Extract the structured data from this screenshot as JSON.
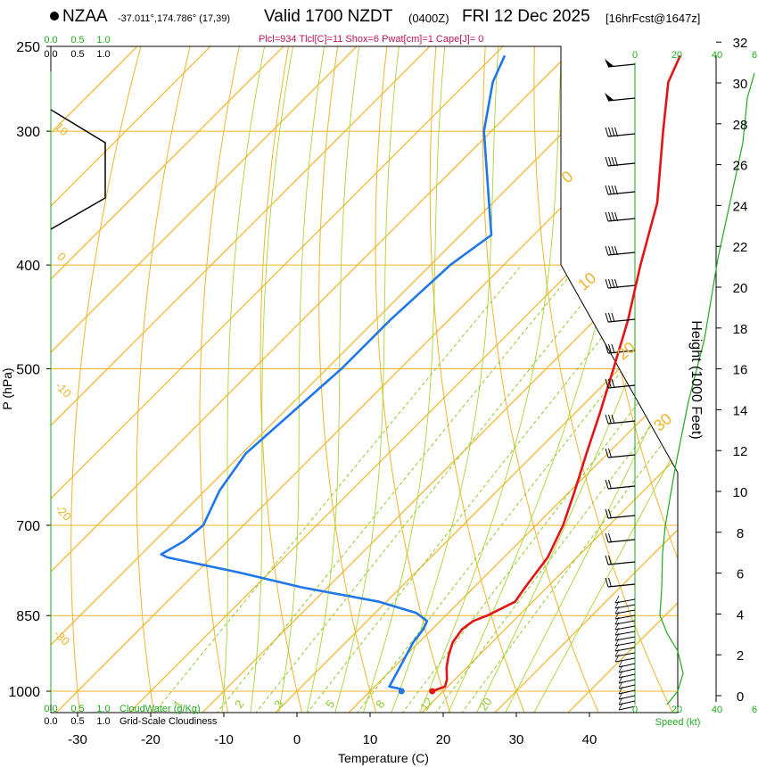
{
  "header": {
    "station": "NZAA",
    "coords": "-37.011°,174.786° (17,39)",
    "valid": "Valid 1700 NZDT",
    "utc": "(0400Z)",
    "date": "FRI 12 Dec 2025",
    "forecast": "[16hrFcst@1647z]",
    "params": "Plcl=934 Tlcl[C]=11 Shox=6 Pwat[cm]=1 Cape[J]= 0"
  },
  "chart_data": {
    "type": "skew-t log-p sounding",
    "xlabel": "Temperature (C)",
    "ylabel": "P (hPa)",
    "right_axis_label": "Height (1000 Feet)",
    "speed_label": "Speed (kt)",
    "cloudwater_label": "CloudWater (g/Kg)",
    "cloudiness_label": "Grid-Scale Cloudiness",
    "x_ticks": [
      "-30",
      "-20",
      "-10",
      "0",
      "10",
      "20",
      "30",
      "40"
    ],
    "pressure_ticks": [
      "250",
      "300",
      "400",
      "500",
      "700",
      "850",
      "1000"
    ],
    "height_ticks": [
      "0",
      "2",
      "4",
      "6",
      "8",
      "10",
      "12",
      "14",
      "16",
      "18",
      "20",
      "22",
      "24",
      "26",
      "28",
      "30",
      "32"
    ],
    "speed_ticks": [
      "0",
      "20",
      "40",
      "6"
    ],
    "cloud_ticks": [
      "0.0",
      "0.5",
      "1.0"
    ],
    "isotherm_labels": [
      "10",
      "0",
      "-10",
      "-20",
      "-30"
    ],
    "dry_adiabat_labels": [
      "0",
      "10",
      "20",
      "30"
    ],
    "mixing_ratio_labels": [
      "1",
      "2",
      "3",
      "5",
      "8",
      "12",
      "20"
    ],
    "temperature_profile_C": [
      {
        "p": 1000,
        "t": 18.5
      },
      {
        "p": 990,
        "t": 19.6
      },
      {
        "p": 975,
        "t": 18.9
      },
      {
        "p": 950,
        "t": 17.2
      },
      {
        "p": 925,
        "t": 15.8
      },
      {
        "p": 900,
        "t": 14.6
      },
      {
        "p": 875,
        "t": 14.1
      },
      {
        "p": 860,
        "t": 14.5
      },
      {
        "p": 850,
        "t": 15.7
      },
      {
        "p": 825,
        "t": 17.6
      },
      {
        "p": 800,
        "t": 17.0
      },
      {
        "p": 775,
        "t": 16.5
      },
      {
        "p": 750,
        "t": 16.0
      },
      {
        "p": 700,
        "t": 13.7
      },
      {
        "p": 650,
        "t": 10.6
      },
      {
        "p": 600,
        "t": 7.1
      },
      {
        "p": 550,
        "t": 3.4
      },
      {
        "p": 500,
        "t": -0.8
      },
      {
        "p": 450,
        "t": -5.5
      },
      {
        "p": 400,
        "t": -11.3
      },
      {
        "p": 350,
        "t": -17.5
      },
      {
        "p": 300,
        "t": -26.5
      },
      {
        "p": 270,
        "t": -32.5
      },
      {
        "p": 255,
        "t": -34.5
      }
    ],
    "dewpoint_profile_C": [
      {
        "p": 1000,
        "t": 14.3
      },
      {
        "p": 995,
        "t": 13.8
      },
      {
        "p": 990,
        "t": 12.0
      },
      {
        "p": 950,
        "t": 10.8
      },
      {
        "p": 900,
        "t": 9.2
      },
      {
        "p": 875,
        "t": 8.8
      },
      {
        "p": 860,
        "t": 8.2
      },
      {
        "p": 845,
        "t": 5.6
      },
      {
        "p": 825,
        "t": -1.0
      },
      {
        "p": 800,
        "t": -13.5
      },
      {
        "p": 775,
        "t": -24.0
      },
      {
        "p": 750,
        "t": -36.0
      },
      {
        "p": 745,
        "t": -37.3
      },
      {
        "p": 725,
        "t": -36.0
      },
      {
        "p": 700,
        "t": -35.5
      },
      {
        "p": 650,
        "t": -38.0
      },
      {
        "p": 600,
        "t": -39.5
      },
      {
        "p": 500,
        "t": -38.0
      },
      {
        "p": 450,
        "t": -38.0
      },
      {
        "p": 400,
        "t": -37.3
      },
      {
        "p": 375,
        "t": -35.8
      },
      {
        "p": 350,
        "t": -40.5
      },
      {
        "p": 300,
        "t": -51.0
      },
      {
        "p": 270,
        "t": -56.5
      },
      {
        "p": 255,
        "t": -58.5
      }
    ],
    "surface_temperature_C": 18.5,
    "surface_dewpoint_C": 14.3,
    "ranges": {
      "x": [
        -35,
        45
      ],
      "p": [
        250,
        1000
      ]
    },
    "colors": {
      "temperature": "#e31414",
      "dewpoint": "#1f77e8",
      "isotherm": "#f0b428",
      "dry_adiabat": "#a8d632",
      "mixing_ratio": "#8ccc2c",
      "header_params": "#c0145a",
      "axis_green": "#1eaa1e"
    }
  }
}
